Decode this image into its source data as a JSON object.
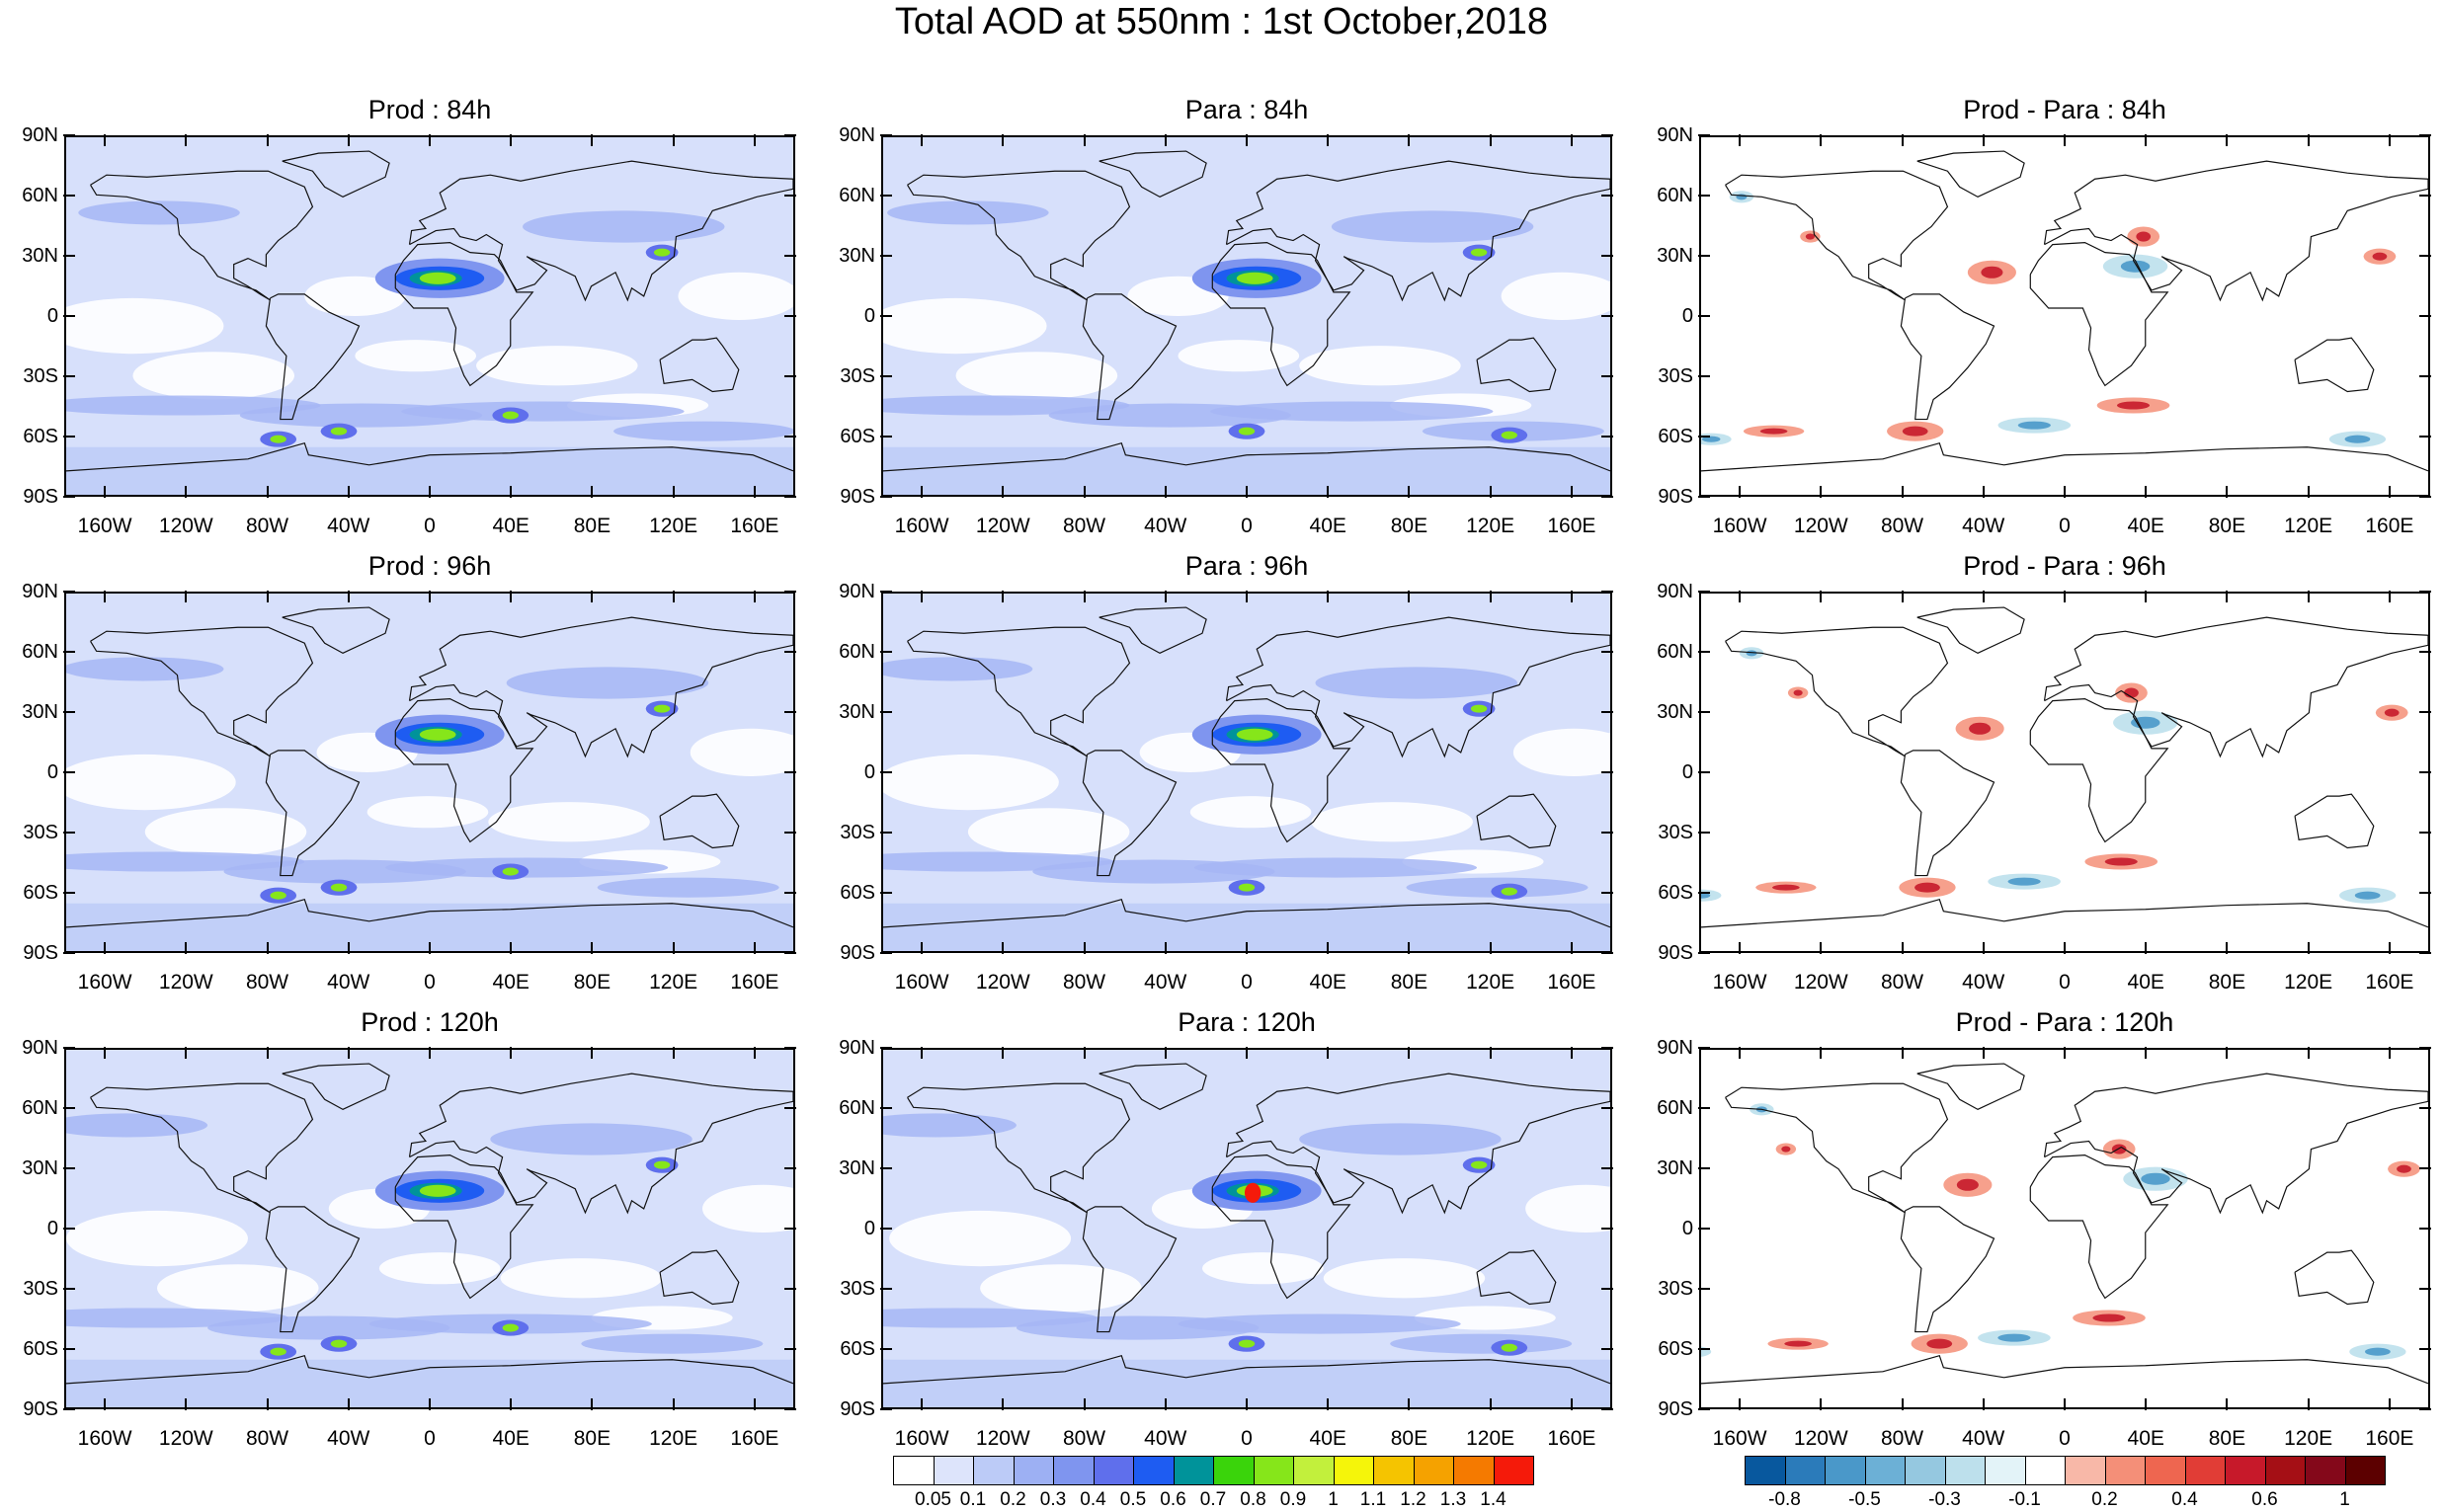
{
  "title": "Total AOD at 550nm : 1st October,2018",
  "lat_labels": [
    "90N",
    "60N",
    "30N",
    "0",
    "30S",
    "60S",
    "90S"
  ],
  "lon_labels": [
    "160W",
    "120W",
    "80W",
    "40W",
    "0",
    "40E",
    "80E",
    "120E",
    "160E"
  ],
  "panels": [
    {
      "title": "Prod : 84h",
      "kind": "aod",
      "variant": 1
    },
    {
      "title": "Para : 84h",
      "kind": "aod",
      "variant": 2
    },
    {
      "title": "Prod - Para : 84h",
      "kind": "diff",
      "variant": 1
    },
    {
      "title": "Prod : 96h",
      "kind": "aod",
      "variant": 3
    },
    {
      "title": "Para : 96h",
      "kind": "aod",
      "variant": 4
    },
    {
      "title": "Prod - Para : 96h",
      "kind": "diff",
      "variant": 2
    },
    {
      "title": "Prod : 120h",
      "kind": "aod",
      "variant": 5
    },
    {
      "title": "Para : 120h",
      "kind": "aod",
      "variant": 6
    },
    {
      "title": "Prod - Para : 120h",
      "kind": "diff",
      "variant": 3
    }
  ],
  "aod_colorbar": {
    "colors": [
      "#ffffff",
      "#dde4fb",
      "#bccbf7",
      "#9db0f3",
      "#7f95ef",
      "#5f6fec",
      "#1e5cf2",
      "#00939a",
      "#3ad40b",
      "#86e61a",
      "#c2f03c",
      "#f5f50a",
      "#f5c400",
      "#f5a200",
      "#f57a00",
      "#f51a0a"
    ],
    "labels": [
      "0.05",
      "0.1",
      "0.2",
      "0.3",
      "0.4",
      "0.5",
      "0.6",
      "0.7",
      "0.8",
      "0.9",
      "1",
      "1.1",
      "1.2",
      "1.3",
      "1.4"
    ]
  },
  "diff_colorbar": {
    "colors": [
      "#08589e",
      "#2b7bba",
      "#4a98c9",
      "#6cb0d6",
      "#95c8e0",
      "#bde0ec",
      "#e3f3f8",
      "#ffffff",
      "#f8b8a8",
      "#f48f78",
      "#ee6650",
      "#e13d36",
      "#c7192a",
      "#a50f15",
      "#84081a",
      "#5c0000"
    ],
    "labels": [
      "-0.8",
      "-0.5",
      "-0.3",
      "-0.1",
      "0.2",
      "0.4",
      "0.6",
      "1"
    ]
  }
}
